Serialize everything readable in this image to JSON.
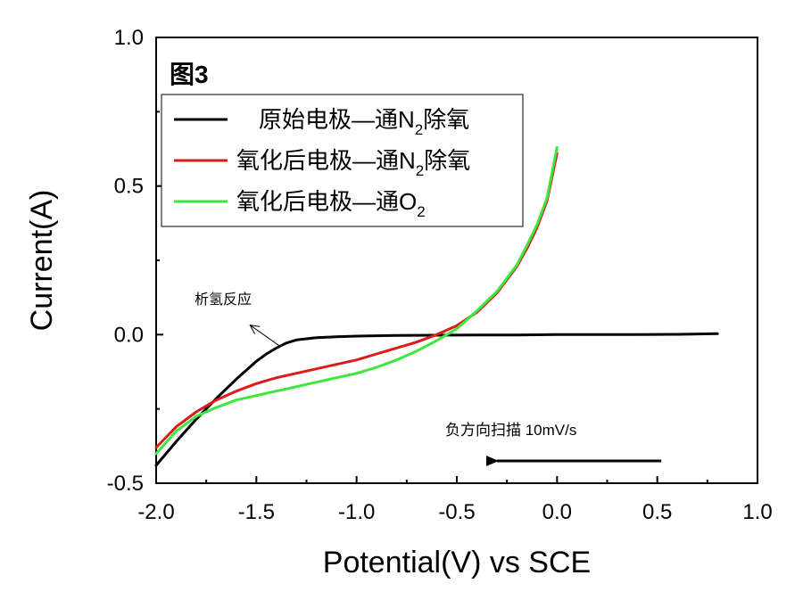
{
  "chart_data": {
    "type": "line",
    "title": "图3",
    "xlabel": "Potential(V) vs SCE",
    "ylabel": "Current(A)",
    "xlim": [
      -2.0,
      1.0
    ],
    "ylim": [
      -0.5,
      1.0
    ],
    "xticks": [
      -2.0,
      -1.5,
      -1.0,
      -0.5,
      0.0,
      0.5,
      1.0
    ],
    "xtick_labels": [
      "-2.0",
      "-1.5",
      "-1.0",
      "-0.5",
      "0.0",
      "0.5",
      "1.0"
    ],
    "yticks": [
      -0.5,
      0.0,
      0.5,
      1.0
    ],
    "ytick_labels": [
      "-0.5",
      "0.0",
      "0.5",
      "1.0"
    ],
    "grid": false,
    "legend_position": "top-left",
    "series": [
      {
        "name": "原始电极—通N2除氧",
        "label_main": "原始电极—通N",
        "label_sub": "2",
        "label_tail": "除氧",
        "color": "#000000",
        "x": [
          -2.0,
          -1.9,
          -1.8,
          -1.7,
          -1.6,
          -1.5,
          -1.45,
          -1.4,
          -1.35,
          -1.3,
          -1.2,
          -1.1,
          -1.0,
          -0.8,
          -0.6,
          -0.4,
          -0.2,
          0.0,
          0.2,
          0.4,
          0.6,
          0.8
        ],
        "y": [
          -0.44,
          -0.36,
          -0.285,
          -0.215,
          -0.15,
          -0.09,
          -0.065,
          -0.045,
          -0.028,
          -0.018,
          -0.01,
          -0.007,
          -0.005,
          -0.003,
          -0.002,
          -0.001,
          -0.001,
          0.0,
          0.0,
          0.0,
          0.001,
          0.003
        ]
      },
      {
        "name": "氧化后电极—通N2除氧",
        "label_main": "氧化后电极—通N",
        "label_sub": "2",
        "label_tail": "除氧",
        "color": "#dd1a1a",
        "x": [
          -2.0,
          -1.9,
          -1.8,
          -1.7,
          -1.6,
          -1.5,
          -1.4,
          -1.3,
          -1.2,
          -1.1,
          -1.0,
          -0.9,
          -0.8,
          -0.7,
          -0.6,
          -0.5,
          -0.4,
          -0.3,
          -0.2,
          -0.15,
          -0.1,
          -0.05,
          0.0
        ],
        "y": [
          -0.38,
          -0.31,
          -0.26,
          -0.22,
          -0.19,
          -0.165,
          -0.145,
          -0.13,
          -0.115,
          -0.1,
          -0.085,
          -0.065,
          -0.045,
          -0.025,
          0.0,
          0.03,
          0.075,
          0.14,
          0.23,
          0.29,
          0.36,
          0.45,
          0.61
        ]
      },
      {
        "name": "氧化后电极—通O2",
        "label_main": "氧化后电极—通O",
        "label_sub": "2",
        "label_tail": "",
        "color": "#3ee63e",
        "x": [
          -2.0,
          -1.9,
          -1.8,
          -1.7,
          -1.6,
          -1.5,
          -1.4,
          -1.3,
          -1.2,
          -1.1,
          -1.0,
          -0.9,
          -0.8,
          -0.7,
          -0.6,
          -0.5,
          -0.4,
          -0.3,
          -0.2,
          -0.15,
          -0.1,
          -0.05,
          0.0
        ],
        "y": [
          -0.4,
          -0.325,
          -0.275,
          -0.245,
          -0.22,
          -0.205,
          -0.19,
          -0.175,
          -0.16,
          -0.145,
          -0.13,
          -0.11,
          -0.085,
          -0.055,
          -0.02,
          0.02,
          0.08,
          0.145,
          0.235,
          0.3,
          0.37,
          0.46,
          0.63
        ]
      }
    ],
    "annotations": [
      {
        "text": "析氢反应",
        "target_x": -1.38,
        "target_y": -0.04
      },
      {
        "text": "负方向扫描  10mV/s",
        "arrow_from_x": 0.52,
        "arrow_to_x": -0.3,
        "arrow_y": -0.425
      }
    ]
  }
}
